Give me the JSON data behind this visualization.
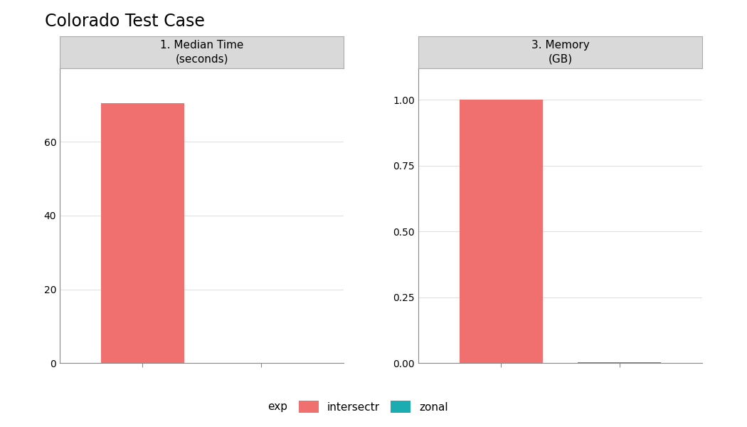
{
  "title": "Colorado Test Case",
  "panels": [
    {
      "label": "1. Median Time\n(seconds)",
      "categories": [
        "intersectr",
        "zonal"
      ],
      "values": [
        70.5,
        0.05
      ],
      "ylim": [
        0,
        80
      ],
      "yticks": [
        0,
        20,
        40,
        60
      ],
      "yticklabels": [
        "0",
        "20",
        "40",
        "60"
      ]
    },
    {
      "label": "3. Memory\n(GB)",
      "categories": [
        "intersectr",
        "zonal"
      ],
      "values": [
        1.0,
        0.003
      ],
      "ylim": [
        0,
        1.12
      ],
      "yticks": [
        0.0,
        0.25,
        0.5,
        0.75,
        1.0
      ],
      "yticklabels": [
        "0.00",
        "0.25",
        "0.50",
        "0.75",
        "1.00"
      ]
    }
  ],
  "bar_colors": {
    "intersectr": "#F07070",
    "zonal": "#1AACB0"
  },
  "legend_labels": [
    "intersectr",
    "zonal"
  ],
  "legend_colors": [
    "#F07070",
    "#1AACB0"
  ],
  "exp_label": "exp",
  "background_color": "#FFFFFF",
  "panel_header_color": "#D9D9D9",
  "panel_header_border": "#AAAAAA",
  "plot_bg_color": "#FFFFFF",
  "grid_color": "#E0E0E0",
  "title_fontsize": 17,
  "axis_fontsize": 10,
  "legend_fontsize": 11,
  "panel_label_fontsize": 11,
  "x_positions": [
    1,
    2
  ],
  "bar_width": 0.7,
  "xlim": [
    0.3,
    2.7
  ]
}
